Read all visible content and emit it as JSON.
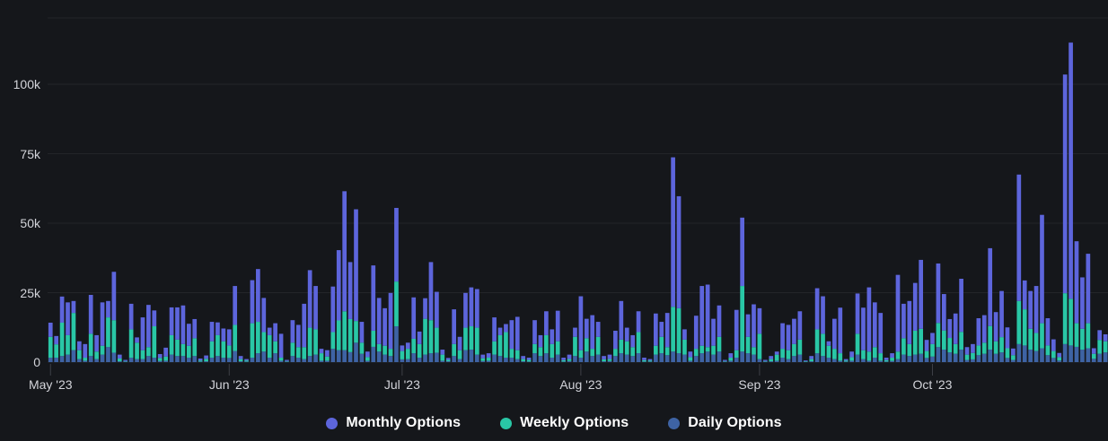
{
  "panel": {
    "background_color": "#15171B",
    "axis_text_color": "#D3D4DA",
    "grid_color": "rgba(204,208,222,0.08)",
    "tick_mark_color": "rgba(204,208,222,0.22)"
  },
  "chart_data": {
    "type": "bar",
    "stacked": true,
    "grid": "horizontal",
    "legend_position": "bottom-center",
    "x_range": {
      "start": "2023-05-01",
      "end": "2023-10-31",
      "granularity": "daily"
    },
    "xtick_labels": [
      "May '23",
      "Jun '23",
      "Jul '23",
      "Aug '23",
      "Sep '23",
      "Oct '23"
    ],
    "xtick_day_index": [
      0,
      31,
      61,
      92,
      123,
      153
    ],
    "ytick_labels": [
      "0",
      "25k",
      "50k",
      "75k",
      "100k"
    ],
    "ytick_values_k": [
      0,
      25,
      50,
      75,
      100
    ],
    "ylim_k": [
      0,
      123
    ],
    "series": [
      {
        "name": "Monthly Options",
        "color": "#5D65DC",
        "stack_position": "top"
      },
      {
        "name": "Weekly Options",
        "color": "#29C7A6",
        "stack_position": "middle"
      },
      {
        "name": "Daily Options",
        "color": "#3E63A4",
        "stack_position": "bottom"
      }
    ],
    "values_unit": "thousands (k)",
    "values_order": [
      "monthly",
      "weekly",
      "daily"
    ],
    "values_k": [
      [
        5.1,
        7.5,
        1.6
      ],
      [
        3.0,
        4.8,
        1.6
      ],
      [
        9.4,
        12.0,
        2.2
      ],
      [
        11.8,
        7.0,
        2.7
      ],
      [
        4.3,
        13.4,
        4.3
      ],
      [
        3.2,
        3.2,
        1.1
      ],
      [
        4.9,
        1.1,
        0.5
      ],
      [
        14.0,
        8.0,
        2.2
      ],
      [
        5.9,
        2.7,
        1.1
      ],
      [
        15.6,
        3.2,
        2.7
      ],
      [
        5.9,
        10.7,
        5.4
      ],
      [
        17.4,
        11.7,
        3.4
      ],
      [
        1.4,
        1.0,
        0.3
      ],
      [
        0.4,
        0.2,
        0.2
      ],
      [
        9.2,
        10.2,
        1.6
      ],
      [
        1.9,
        5.9,
        1.1
      ],
      [
        11.8,
        3.2,
        1.1
      ],
      [
        15.2,
        3.2,
        2.2
      ],
      [
        5.7,
        11.3,
        1.6
      ],
      [
        1.4,
        1.1,
        0.4
      ],
      [
        3.2,
        1.5,
        0.5
      ],
      [
        10.0,
        7.0,
        2.7
      ],
      [
        11.6,
        5.9,
        2.2
      ],
      [
        13.9,
        4.3,
        2.2
      ],
      [
        7.9,
        4.3,
        1.6
      ],
      [
        6.9,
        6.4,
        2.2
      ],
      [
        0.7,
        0.4,
        0.2
      ],
      [
        1.2,
        0.9,
        0.3
      ],
      [
        7.0,
        5.9,
        1.6
      ],
      [
        4.6,
        7.5,
        2.2
      ],
      [
        4.6,
        5.9,
        1.6
      ],
      [
        5.8,
        4.5,
        1.5
      ],
      [
        14.0,
        9.4,
        4.0
      ],
      [
        1.1,
        0.8,
        0.3
      ],
      [
        0.5,
        0.4,
        0.2
      ],
      [
        15.5,
        12.4,
        1.6
      ],
      [
        19.0,
        11.3,
        3.2
      ],
      [
        12.3,
        7.0,
        3.8
      ],
      [
        2.7,
        8.1,
        1.6
      ],
      [
        6.5,
        4.3,
        3.2
      ],
      [
        8.6,
        1.1,
        0.5
      ],
      [
        0.4,
        0.2,
        0.2
      ],
      [
        8.1,
        4.8,
        2.2
      ],
      [
        8.0,
        3.8,
        1.6
      ],
      [
        15.6,
        4.3,
        1.1
      ],
      [
        20.7,
        10.2,
        2.2
      ],
      [
        15.6,
        9.1,
        2.7
      ],
      [
        1.6,
        2.7,
        0.5
      ],
      [
        2.3,
        1.5,
        0.5
      ],
      [
        16.4,
        6.0,
        4.8
      ],
      [
        25.3,
        10.7,
        4.3
      ],
      [
        43.2,
        14.0,
        4.3
      ],
      [
        20.5,
        11.9,
        3.6
      ],
      [
        40.2,
        7.8,
        7.0
      ],
      [
        7.5,
        4.0,
        3.0
      ],
      [
        2.0,
        1.3,
        0.5
      ],
      [
        23.5,
        5.8,
        5.5
      ],
      [
        16.6,
        2.7,
        3.8
      ],
      [
        13.5,
        3.2,
        2.7
      ],
      [
        20.1,
        2.6,
        2.2
      ],
      [
        26.5,
        16.1,
        12.9
      ],
      [
        2.0,
        3.0,
        1.0
      ],
      [
        2.2,
        3.7,
        1.1
      ],
      [
        14.9,
        5.2,
        3.2
      ],
      [
        4.5,
        4.9,
        1.6
      ],
      [
        7.4,
        12.9,
        2.7
      ],
      [
        20.9,
        11.9,
        3.2
      ],
      [
        12.9,
        9.0,
        3.4
      ],
      [
        1.8,
        2.2,
        0.5
      ],
      [
        0.7,
        0.5,
        0.3
      ],
      [
        12.5,
        4.3,
        2.2
      ],
      [
        4.8,
        3.2,
        1.1
      ],
      [
        12.5,
        8.1,
        4.3
      ],
      [
        14.0,
        8.4,
        4.5
      ],
      [
        13.9,
        9.7,
        2.7
      ],
      [
        1.3,
        1.0,
        0.4
      ],
      [
        1.6,
        1.1,
        0.5
      ],
      [
        8.6,
        4.8,
        2.7
      ],
      [
        2.7,
        7.5,
        2.2
      ],
      [
        2.9,
        9.2,
        1.6
      ],
      [
        10.3,
        3.2,
        1.6
      ],
      [
        12.0,
        3.2,
        1.1
      ],
      [
        1.1,
        0.8,
        0.3
      ],
      [
        0.8,
        0.6,
        0.2
      ],
      [
        8.6,
        3.3,
        3.2
      ],
      [
        4.3,
        3.2,
        2.2
      ],
      [
        8.6,
        6.5,
        3.2
      ],
      [
        5.3,
        4.9,
        1.6
      ],
      [
        11.0,
        4.8,
        2.7
      ],
      [
        0.9,
        0.5,
        0.2
      ],
      [
        1.6,
        0.7,
        0.4
      ],
      [
        3.3,
        6.9,
        2.2
      ],
      [
        19.4,
        2.7,
        1.6
      ],
      [
        7.0,
        4.8,
        3.8
      ],
      [
        12.1,
        2.6,
        2.2
      ],
      [
        5.4,
        6.4,
        2.7
      ],
      [
        1.2,
        0.7,
        0.3
      ],
      [
        1.6,
        0.7,
        0.4
      ],
      [
        6.5,
        2.6,
        2.2
      ],
      [
        13.9,
        4.9,
        3.2
      ],
      [
        4.9,
        4.8,
        2.7
      ],
      [
        4.3,
        3.2,
        2.2
      ],
      [
        7.5,
        7.6,
        3.2
      ],
      [
        0.9,
        0.5,
        0.2
      ],
      [
        0.5,
        0.4,
        0.2
      ],
      [
        11.6,
        3.2,
        2.7
      ],
      [
        5.4,
        5.9,
        3.2
      ],
      [
        12.3,
        2.9,
        2.5
      ],
      [
        53.8,
        16.1,
        3.8
      ],
      [
        40.3,
        16.2,
        3.2
      ],
      [
        3.7,
        5.4,
        2.7
      ],
      [
        2.0,
        1.3,
        0.5
      ],
      [
        11.9,
        2.6,
        2.2
      ],
      [
        21.5,
        2.7,
        3.2
      ],
      [
        22.5,
        1.6,
        3.8
      ],
      [
        9.7,
        3.2,
        2.7
      ],
      [
        11.3,
        5.3,
        3.8
      ],
      [
        0.4,
        0.2,
        0.2
      ],
      [
        1.6,
        1.1,
        0.5
      ],
      [
        14.5,
        2.7,
        1.6
      ],
      [
        24.6,
        23.6,
        3.8
      ],
      [
        8.1,
        5.9,
        3.2
      ],
      [
        15.4,
        2.7,
        2.7
      ],
      [
        9.2,
        9.1,
        1.1
      ],
      [
        0.4,
        0.2,
        0.2
      ],
      [
        1.1,
        0.8,
        0.3
      ],
      [
        1.1,
        2.2,
        0.5
      ],
      [
        9.2,
        3.2,
        1.6
      ],
      [
        9.1,
        3.2,
        1.1
      ],
      [
        9.1,
        4.3,
        2.2
      ],
      [
        10.2,
        5.4,
        2.7
      ],
      [
        0.3,
        0.2,
        0.1
      ],
      [
        1.1,
        0.8,
        0.3
      ],
      [
        14.8,
        8.6,
        3.2
      ],
      [
        13.5,
        8.0,
        2.2
      ],
      [
        1.6,
        4.3,
        1.6
      ],
      [
        10.8,
        3.7,
        1.1
      ],
      [
        16.4,
        2.7,
        0.5
      ],
      [
        0.5,
        0.4,
        0.2
      ],
      [
        2.0,
        1.3,
        0.5
      ],
      [
        14.5,
        7.5,
        2.7
      ],
      [
        15.3,
        3.2,
        1.1
      ],
      [
        23.1,
        3.3,
        0.5
      ],
      [
        16.1,
        3.8,
        1.6
      ],
      [
        14.5,
        2.7,
        0.5
      ],
      [
        0.9,
        0.5,
        0.2
      ],
      [
        1.6,
        1.2,
        0.4
      ],
      [
        27.6,
        2.7,
        1.1
      ],
      [
        12.4,
        5.9,
        2.7
      ],
      [
        15.5,
        4.3,
        2.2
      ],
      [
        17.2,
        8.6,
        2.7
      ],
      [
        24.8,
        9.0,
        3.0
      ],
      [
        4.0,
        2.5,
        1.5
      ],
      [
        4.0,
        4.5,
        2.0
      ],
      [
        21.4,
        8.7,
        5.4
      ],
      [
        13.1,
        6.9,
        4.5
      ],
      [
        6.8,
        5.2,
        3.5
      ],
      [
        11.0,
        3.5,
        3.0
      ],
      [
        19.1,
        6.4,
        4.5
      ],
      [
        2.7,
        1.9,
        0.8
      ],
      [
        3.2,
        2.3,
        1.0
      ],
      [
        9.8,
        3.5,
        2.5
      ],
      [
        9.9,
        4.0,
        3.0
      ],
      [
        28.0,
        8.5,
        4.5
      ],
      [
        10.5,
        4.5,
        3.0
      ],
      [
        16.6,
        5.5,
        3.5
      ],
      [
        7.5,
        3.5,
        1.5
      ],
      [
        2.4,
        1.7,
        0.8
      ],
      [
        45.5,
        15.5,
        6.5
      ],
      [
        10.4,
        13.0,
        6.0
      ],
      [
        13.6,
        7.5,
        4.5
      ],
      [
        16.9,
        6.5,
        4.0
      ],
      [
        39.0,
        9.0,
        5.0
      ],
      [
        9.8,
        3.5,
        2.5
      ],
      [
        4.2,
        2.5,
        1.5
      ],
      [
        1.5,
        1.2,
        0.6
      ],
      [
        78.7,
        18.3,
        6.5
      ],
      [
        92.2,
        16.8,
        6.0
      ],
      [
        29.5,
        8.5,
        5.5
      ],
      [
        18.5,
        7.5,
        4.5
      ],
      [
        25.0,
        9.0,
        5.0
      ],
      [
        2.0,
        1.8,
        1.2
      ],
      [
        3.5,
        5.0,
        3.0
      ],
      [
        2.5,
        4.0,
        3.5
      ]
    ]
  }
}
